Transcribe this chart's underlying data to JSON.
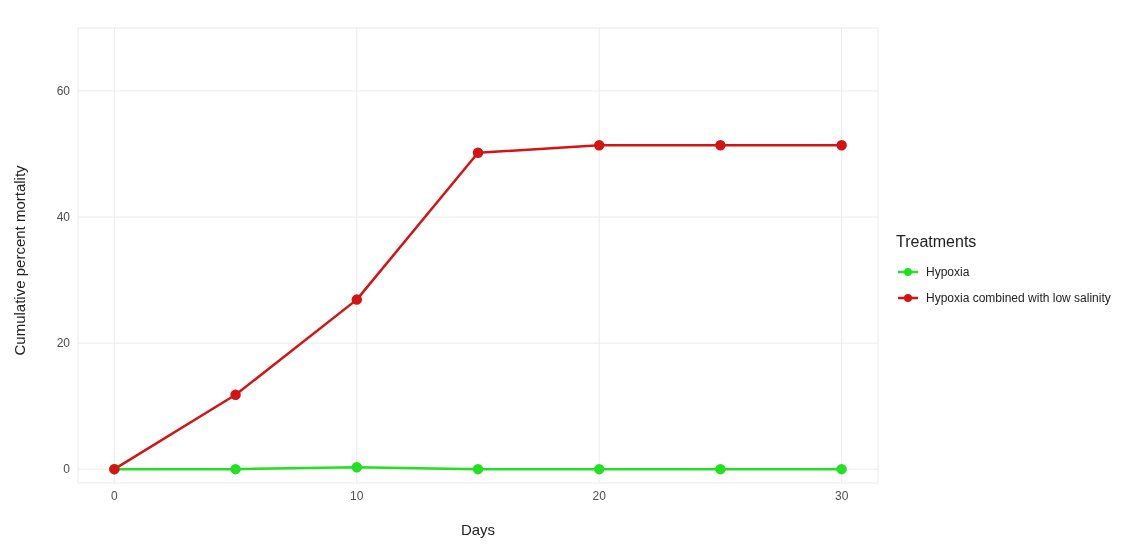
{
  "chart_data": {
    "type": "line",
    "xlabel": "Days",
    "ylabel": "Cumulative percent mortality",
    "legend_title": "Treatments",
    "x": [
      0,
      5,
      10,
      15,
      20,
      25,
      30
    ],
    "series": [
      {
        "name": "Hypoxia",
        "color": "#22e022",
        "values": [
          0,
          0,
          0.3,
          0,
          0,
          0,
          0
        ]
      },
      {
        "name": "Hypoxia combined with low salinity",
        "color": "#d41414",
        "values": [
          0,
          11.8,
          26.9,
          50.2,
          51.4,
          51.4,
          51.4
        ]
      }
    ],
    "xlim": [
      -1.5,
      31.5
    ],
    "xticks": [
      0,
      10,
      20,
      30
    ],
    "ylim": [
      -2.2,
      70
    ],
    "yticks": [
      0,
      20,
      40,
      60
    ],
    "grid": true,
    "legend": "right",
    "marker": "circle",
    "line_style": "solid"
  }
}
